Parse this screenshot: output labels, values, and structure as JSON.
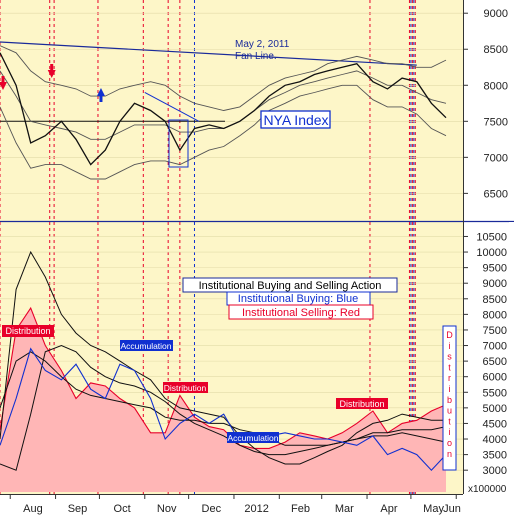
{
  "chart_data": [
    {
      "type": "line",
      "panel": "upper",
      "title": "NYA Index",
      "ylim": [
        6200,
        9100
      ],
      "yticks": [
        6500,
        7000,
        7500,
        8000,
        8500,
        9000
      ],
      "ytick_labels": [
        "6500",
        "7000",
        "7500",
        "8000",
        "8500",
        "9000"
      ],
      "x": [
        "Jul 25",
        "Aug 5",
        "Aug 15",
        "Aug 25",
        "Sep 5",
        "Sep 15",
        "Sep 25",
        "Oct 5",
        "Oct 15",
        "Oct 25",
        "Nov 5",
        "Nov 15",
        "Nov 25",
        "Dec 5",
        "Dec 15",
        "Dec 25",
        "Jan 5",
        "Jan 15",
        "Jan 25",
        "Feb 5",
        "Feb 15",
        "Feb 25",
        "Mar 5",
        "Mar 15",
        "Mar 25",
        "Apr 5",
        "Apr 15",
        "Apr 25",
        "May 5",
        "May 15",
        "May 25"
      ],
      "series": [
        {
          "values": [
            8450,
            8000,
            7200,
            7300,
            7500,
            7250,
            6900,
            7100,
            7500,
            7750,
            7650,
            7500,
            7100,
            7400,
            7450,
            7400,
            7500,
            7650,
            7850,
            8000,
            8050,
            8150,
            8200,
            8250,
            8300,
            8050,
            7950,
            8100,
            8050,
            7750,
            7550
          ]
        },
        {
          "values": [
            8550,
            8450,
            8200,
            8050,
            8000,
            7950,
            7850,
            7850,
            7950,
            8000,
            8050,
            8000,
            7850,
            7750,
            7700,
            7650,
            7700,
            7850,
            8000,
            8100,
            8150,
            8200,
            8300,
            8350,
            8400,
            8350,
            8300,
            8300,
            8250,
            8250,
            8350
          ]
        },
        {
          "values": [
            7700,
            7200,
            6850,
            6900,
            6900,
            6800,
            6700,
            6700,
            6800,
            6900,
            6950,
            6950,
            6900,
            7000,
            7100,
            7150,
            7300,
            7450,
            7650,
            7750,
            7850,
            7900,
            7950,
            8000,
            8000,
            7800,
            7700,
            7700,
            7600,
            7400,
            7300
          ]
        },
        {
          "values": [
            8200,
            7850,
            7500,
            7450,
            7400,
            7350,
            7250,
            7250,
            7350,
            7450,
            7450,
            7450,
            7350,
            7350,
            7400,
            7400,
            7500,
            7650,
            7800,
            7900,
            8000,
            8050,
            8100,
            8150,
            8200,
            8100,
            8000,
            8000,
            7900,
            7800,
            7750
          ]
        }
      ],
      "annotations": {
        "fan_line_label_1": "May 2, 2011",
        "fan_line_label_2": "Fan Line.",
        "fan_line": {
          "start": [
            "Jul 25",
            8600
          ],
          "end": [
            "May 5",
            8280
          ]
        },
        "index_label": "NYA Index"
      }
    },
    {
      "type": "area",
      "panel": "lower",
      "title": "Institutional Buying and Selling Action",
      "legend": [
        "Institutional Buying: Blue",
        "Institutional Selling: Red"
      ],
      "ylim": [
        2300,
        10900
      ],
      "yticks": [
        3000,
        3500,
        4000,
        4500,
        5000,
        5500,
        6000,
        6500,
        7000,
        7500,
        8000,
        8500,
        9000,
        9500,
        10000,
        10500
      ],
      "ytick_labels": [
        "3000",
        "3500",
        "4000",
        "4500",
        "5000",
        "5500",
        "6000",
        "6500",
        "7000",
        "7500",
        "8000",
        "8500",
        "9000",
        "9500",
        "10000",
        "10500"
      ],
      "scale_note": "x100000",
      "x": [
        "Jul 25",
        "Aug 5",
        "Aug 15",
        "Aug 25",
        "Sep 5",
        "Sep 15",
        "Sep 25",
        "Oct 5",
        "Oct 15",
        "Oct 25",
        "Nov 5",
        "Nov 15",
        "Nov 25",
        "Dec 5",
        "Dec 15",
        "Dec 25",
        "Jan 5",
        "Jan 15",
        "Jan 25",
        "Feb 5",
        "Feb 15",
        "Feb 25",
        "Mar 5",
        "Mar 15",
        "Mar 25",
        "Apr 5",
        "Apr 15",
        "Apr 25",
        "May 5",
        "May 15",
        "May 25"
      ],
      "series": [
        {
          "name": "Institutional Selling: Red",
          "values": [
            4300,
            7500,
            8200,
            7000,
            6200,
            5300,
            5800,
            5700,
            5300,
            5000,
            4200,
            4200,
            5400,
            4700,
            4400,
            4300,
            3800,
            3700,
            3700,
            3900,
            4200,
            4100,
            4000,
            4200,
            4500,
            4900,
            4200,
            4500,
            4600,
            4900,
            5100
          ]
        },
        {
          "name": "Institutional Buying: Blue",
          "values": [
            3800,
            5300,
            6900,
            6200,
            5900,
            6400,
            5600,
            5300,
            6400,
            6200,
            5300,
            4000,
            4500,
            4800,
            4500,
            4800,
            3900,
            3900,
            4100,
            4200,
            4100,
            4000,
            4000,
            3900,
            3800,
            4100,
            3500,
            3700,
            3500,
            3000,
            3500
          ]
        },
        {
          "values": [
            4000,
            8800,
            10000,
            9200,
            8000,
            7400,
            7000,
            6800,
            6500,
            6200,
            5900,
            5300,
            5000,
            4900,
            4800,
            4700,
            4100,
            3700,
            3400,
            3200,
            3200,
            3400,
            3600,
            3800,
            4200,
            4500,
            4600,
            4800,
            4700,
            4600,
            4600
          ]
        },
        {
          "values": [
            3200,
            3000,
            4800,
            6800,
            7000,
            6800,
            6300,
            6000,
            5800,
            5700,
            5500,
            5200,
            4800,
            4500,
            4300,
            4100,
            3800,
            3600,
            3500,
            3500,
            3600,
            3700,
            3800,
            3900,
            4000,
            4100,
            4100,
            4200,
            4100,
            4000,
            3900
          ]
        },
        {
          "values": [
            5000,
            6500,
            6800,
            6500,
            6000,
            5600,
            5400,
            5300,
            5200,
            5100,
            5000,
            4700,
            4600,
            4600,
            4500,
            4500,
            4300,
            4200,
            4000,
            3800,
            3800,
            3800,
            3800,
            3900,
            4000,
            4200,
            4200,
            4300,
            4300,
            4300,
            4400
          ]
        }
      ],
      "annotations": {
        "distribution_1": "Distribution",
        "accumulation_1": "Accumulation",
        "distribution_2": "Distribution",
        "accumulation_2": "Accumulation",
        "distribution_3": "Distribution",
        "distribution_vertical": "Distribution"
      }
    }
  ],
  "x_axis": {
    "months": [
      "Aug",
      "Sep",
      "Oct",
      "Nov",
      "Dec",
      "2012",
      "Feb",
      "Mar",
      "Apr",
      "May",
      "Jun"
    ],
    "month_dates": [
      "Aug 1",
      "Sep 1",
      "Oct 1",
      "Nov 1",
      "Dec 1",
      "Jan 1",
      "Feb 1",
      "Mar 1",
      "Apr 1",
      "May 1",
      "Jun 1"
    ]
  },
  "markers": {
    "red_down_arrows": [
      "Jul 25",
      "Aug 28"
    ],
    "blue_up_arrow": "Sep 30",
    "red_dashed_dates": [
      "Jul 25",
      "Aug 28",
      "Aug 31",
      "Sep 30",
      "Oct 31",
      "Nov 17",
      "Nov 25",
      "Apr 3",
      "Apr 30",
      "May 2",
      "May 4"
    ],
    "blue_dashed_dates": [
      "Dec 5",
      "May 1",
      "May 3"
    ]
  },
  "colors": {
    "background": "#fdf6c8",
    "selling": "#e8002a",
    "selling_fill": "#ffb6b6",
    "buying": "#1030d0",
    "fan_line": "#1a2a9a",
    "index": "#111111",
    "bands": "#333333"
  }
}
